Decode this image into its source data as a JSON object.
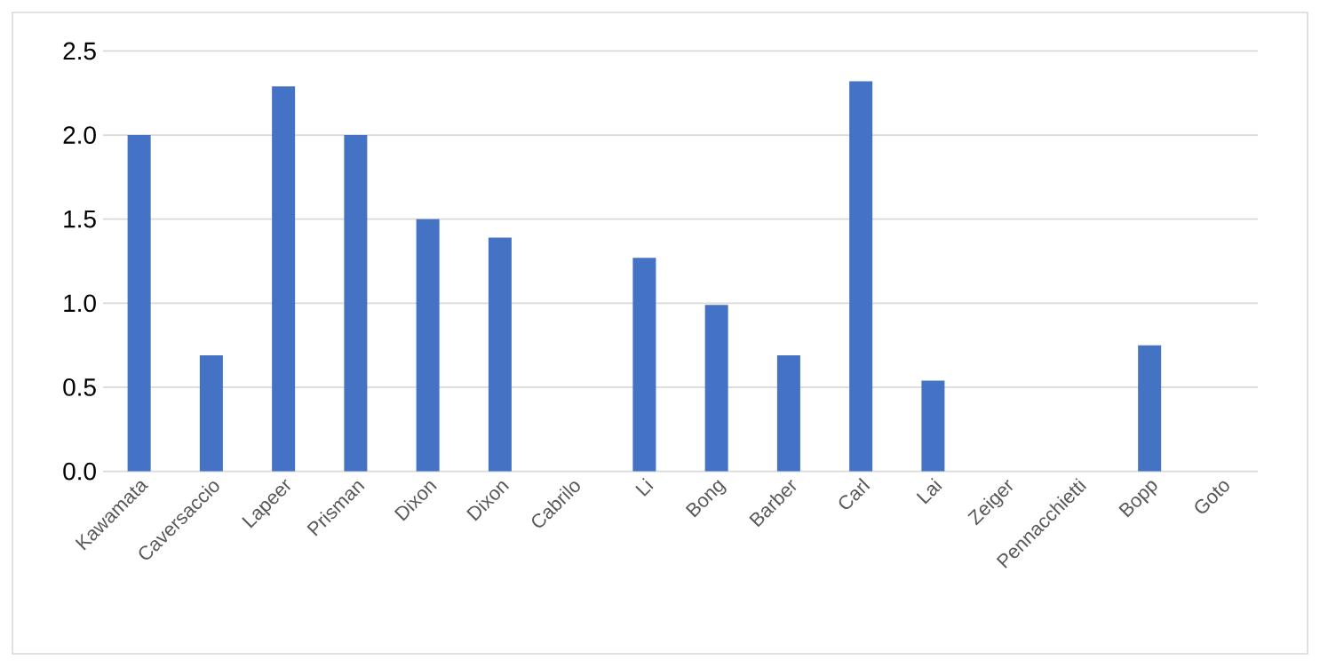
{
  "chart_data": {
    "type": "bar",
    "categories": [
      "Kawamata",
      "Caversaccio",
      "Lapeer",
      "Prisman",
      "Dixon",
      "Dixon",
      "Cabrilo",
      "Li",
      "Bong",
      "Barber",
      "Carl",
      "Lai",
      "Zeiger",
      "Pennacchietti",
      "Bopp",
      "Goto"
    ],
    "values": [
      2.0,
      0.69,
      2.29,
      2.0,
      1.5,
      1.39,
      0,
      1.27,
      0.99,
      0.69,
      2.32,
      0.54,
      0,
      0,
      0.75,
      0
    ],
    "color": "#4472c4",
    "ylim": [
      0,
      2.5
    ],
    "yticks": [
      {
        "value": 0,
        "label": "0.0"
      },
      0.5,
      {
        "value": 1,
        "label": "1.0"
      },
      1.5,
      {
        "value": 2,
        "label": "2.0"
      },
      2.5
    ],
    "grid": "y"
  }
}
